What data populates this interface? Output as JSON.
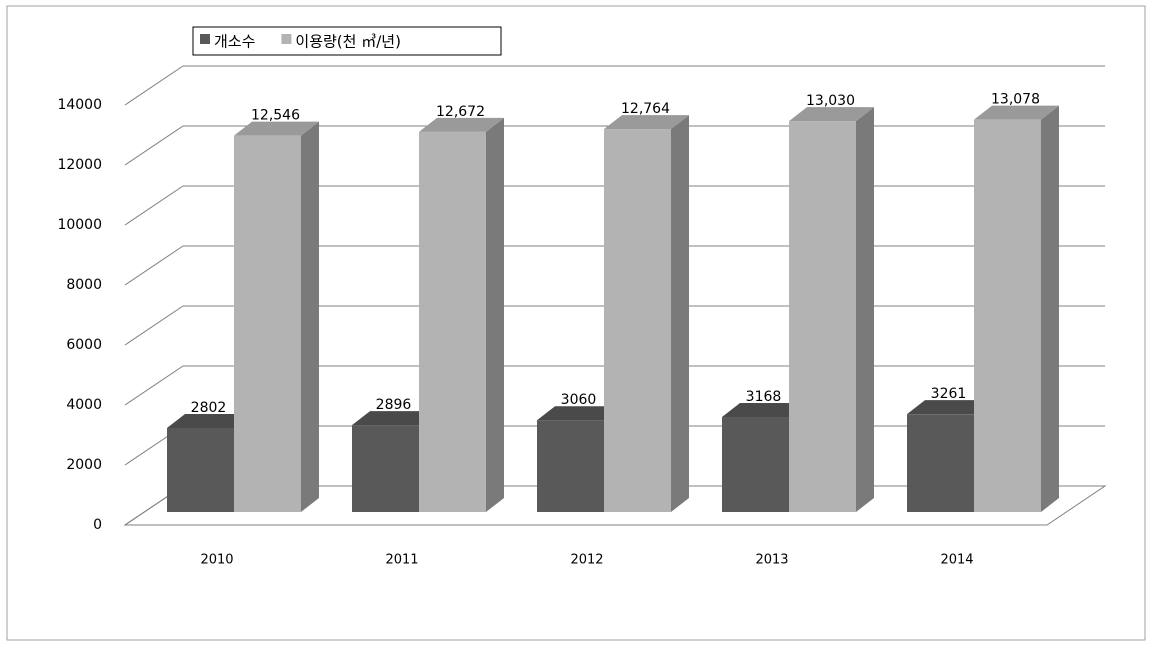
{
  "chart_data": {
    "type": "bar3d",
    "categories": [
      "2010",
      "2011",
      "2012",
      "2013",
      "2014"
    ],
    "series": [
      {
        "name": "개소수",
        "color": "#595959",
        "values": [
          2802,
          2896,
          3060,
          3168,
          3261
        ]
      },
      {
        "name": "이용량(천 ㎥/년)",
        "color": "#b3b3b3",
        "values": [
          12546,
          12672,
          12764,
          13030,
          13078
        ],
        "value_labels": [
          "12,546",
          "12,672",
          "12,764",
          "13,030",
          "13,078"
        ]
      }
    ],
    "ylim": [
      0,
      14000
    ],
    "yticks": [
      0,
      2000,
      4000,
      6000,
      8000,
      10000,
      12000,
      14000
    ],
    "grid": true,
    "legend": "top"
  }
}
